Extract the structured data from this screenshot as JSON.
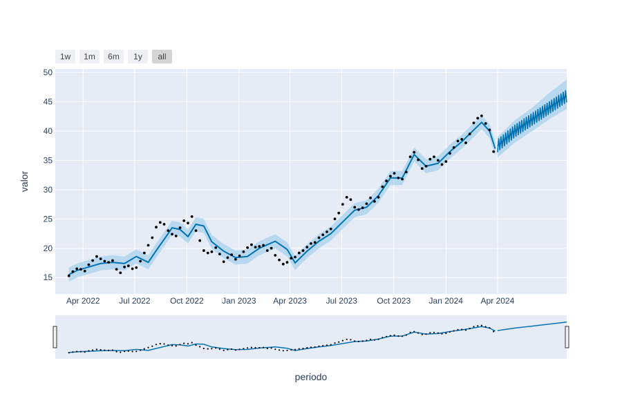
{
  "range_buttons": [
    {
      "label": "1w",
      "active": false
    },
    {
      "label": "1m",
      "active": false
    },
    {
      "label": "6m",
      "active": false
    },
    {
      "label": "1y",
      "active": false
    },
    {
      "label": "all",
      "active": true
    }
  ],
  "colors": {
    "plot_bg": "#e5ecf6",
    "forecast_line": "#0072b2",
    "uncertainty_band": "#a8d1ec",
    "observed_points": "#000000",
    "grid": "#ffffff"
  },
  "chart_data": {
    "type": "line",
    "title": "",
    "xlabel": "periodo",
    "ylabel": "valor",
    "x_type": "date",
    "xlim": [
      "2022-02-11",
      "2024-08-01"
    ],
    "ylim": [
      12.2,
      50.6
    ],
    "x_ticks": [
      {
        "date": "2022-04-01",
        "label": "Apr 2022"
      },
      {
        "date": "2022-07-01",
        "label": "Jul 2022"
      },
      {
        "date": "2022-10-01",
        "label": "Oct 2022"
      },
      {
        "date": "2023-01-01",
        "label": "Jan 2023"
      },
      {
        "date": "2023-04-01",
        "label": "Apr 2023"
      },
      {
        "date": "2023-07-01",
        "label": "Jul 2023"
      },
      {
        "date": "2023-10-01",
        "label": "Oct 2023"
      },
      {
        "date": "2024-01-01",
        "label": "Jan 2024"
      },
      {
        "date": "2024-04-01",
        "label": "Apr 2024"
      }
    ],
    "y_ticks": [
      15,
      20,
      25,
      30,
      35,
      40,
      45,
      50
    ],
    "grid": true,
    "rangeslider": true,
    "series": [
      {
        "kind": "forecast",
        "x": [
          "2022-03-07",
          "2022-03-21",
          "2022-04-11",
          "2022-05-02",
          "2022-05-23",
          "2022-06-13",
          "2022-07-04",
          "2022-07-25",
          "2022-08-08",
          "2022-08-29",
          "2022-09-05",
          "2022-09-19",
          "2022-10-03",
          "2022-10-17",
          "2022-10-31",
          "2022-11-14",
          "2022-12-05",
          "2022-12-26",
          "2023-01-16",
          "2023-02-06",
          "2023-03-06",
          "2023-03-27",
          "2023-04-10",
          "2023-05-01",
          "2023-05-22",
          "2023-06-12",
          "2023-07-03",
          "2023-07-24",
          "2023-08-14",
          "2023-09-04",
          "2023-09-25",
          "2023-10-16",
          "2023-11-06",
          "2023-11-27",
          "2023-12-18",
          "2024-01-08",
          "2024-01-29",
          "2024-02-19",
          "2024-03-04",
          "2024-03-18",
          "2024-03-28"
        ],
        "y": [
          15.5,
          16.2,
          16.8,
          17.4,
          17.6,
          17.4,
          18.6,
          17.6,
          19.6,
          22.5,
          23.5,
          23.2,
          22.0,
          24.1,
          23.8,
          21.1,
          19.5,
          18.4,
          18.6,
          20.0,
          21.2,
          19.8,
          17.5,
          19.5,
          21.2,
          22.5,
          24.5,
          26.5,
          27.0,
          29.0,
          32.0,
          32.0,
          36.0,
          34.0,
          34.5,
          36.5,
          38.2,
          40.2,
          41.5,
          40.0,
          37.0
        ],
        "lower": [
          14.3,
          15.0,
          15.6,
          16.2,
          16.4,
          16.2,
          17.4,
          16.4,
          18.4,
          21.3,
          22.3,
          22.0,
          20.8,
          22.9,
          22.6,
          19.9,
          18.3,
          17.2,
          17.4,
          18.8,
          20.0,
          18.6,
          16.3,
          18.3,
          20.0,
          21.3,
          23.3,
          25.3,
          25.8,
          27.8,
          30.8,
          30.8,
          34.8,
          32.8,
          33.3,
          35.3,
          37.0,
          39.0,
          40.3,
          38.8,
          35.8
        ],
        "upper": [
          16.7,
          17.4,
          18.0,
          18.6,
          18.8,
          18.6,
          19.8,
          18.8,
          20.8,
          23.7,
          24.7,
          24.4,
          23.2,
          25.3,
          25.0,
          22.3,
          20.7,
          19.6,
          19.8,
          21.2,
          22.4,
          21.0,
          18.7,
          20.7,
          22.4,
          23.7,
          25.7,
          27.7,
          28.2,
          30.2,
          33.2,
          33.2,
          37.2,
          35.2,
          35.7,
          37.7,
          39.4,
          41.4,
          42.7,
          41.2,
          38.2
        ]
      },
      {
        "kind": "forecast-future",
        "x": [
          "2024-04-01",
          "2024-05-01",
          "2024-06-01",
          "2024-07-01",
          "2024-08-01"
        ],
        "y": [
          37.5,
          40.0,
          42.0,
          44.0,
          46.0
        ],
        "lower": [
          35.5,
          38.0,
          40.0,
          42.0,
          43.8
        ],
        "upper": [
          39.0,
          41.8,
          44.0,
          46.5,
          48.8
        ]
      },
      {
        "kind": "observed",
        "x": [
          "2022-03-07",
          "2022-03-14",
          "2022-03-21",
          "2022-03-28",
          "2022-04-04",
          "2022-04-11",
          "2022-04-18",
          "2022-04-25",
          "2022-05-02",
          "2022-05-09",
          "2022-05-16",
          "2022-05-23",
          "2022-05-30",
          "2022-06-06",
          "2022-06-13",
          "2022-06-20",
          "2022-06-27",
          "2022-07-04",
          "2022-07-11",
          "2022-07-18",
          "2022-07-25",
          "2022-08-01",
          "2022-08-08",
          "2022-08-15",
          "2022-08-22",
          "2022-08-29",
          "2022-09-05",
          "2022-09-12",
          "2022-09-19",
          "2022-09-26",
          "2022-10-03",
          "2022-10-10",
          "2022-10-17",
          "2022-10-24",
          "2022-10-31",
          "2022-11-07",
          "2022-11-14",
          "2022-11-21",
          "2022-11-28",
          "2022-12-05",
          "2022-12-12",
          "2022-12-19",
          "2022-12-26",
          "2023-01-02",
          "2023-01-09",
          "2023-01-16",
          "2023-01-23",
          "2023-01-30",
          "2023-02-06",
          "2023-02-13",
          "2023-02-20",
          "2023-02-27",
          "2023-03-06",
          "2023-03-13",
          "2023-03-20",
          "2023-03-27",
          "2023-04-03",
          "2023-04-10",
          "2023-04-17",
          "2023-04-24",
          "2023-05-01",
          "2023-05-08",
          "2023-05-15",
          "2023-05-22",
          "2023-05-29",
          "2023-06-05",
          "2023-06-12",
          "2023-06-19",
          "2023-06-26",
          "2023-07-03",
          "2023-07-10",
          "2023-07-17",
          "2023-07-24",
          "2023-07-31",
          "2023-08-07",
          "2023-08-14",
          "2023-08-21",
          "2023-08-28",
          "2023-09-04",
          "2023-09-11",
          "2023-09-18",
          "2023-09-25",
          "2023-10-02",
          "2023-10-09",
          "2023-10-16",
          "2023-10-23",
          "2023-10-30",
          "2023-11-06",
          "2023-11-13",
          "2023-11-20",
          "2023-11-27",
          "2023-12-04",
          "2023-12-11",
          "2023-12-18",
          "2023-12-25",
          "2024-01-01",
          "2024-01-08",
          "2024-01-15",
          "2024-01-22",
          "2024-01-29",
          "2024-02-05",
          "2024-02-12",
          "2024-02-19",
          "2024-02-26",
          "2024-03-04",
          "2024-03-11",
          "2024-03-18",
          "2024-03-25"
        ],
        "y": [
          15.3,
          16.0,
          16.5,
          16.4,
          16.1,
          17.2,
          17.9,
          18.6,
          18.2,
          17.8,
          17.6,
          17.9,
          16.4,
          15.8,
          16.8,
          17.0,
          16.5,
          16.7,
          17.8,
          19.2,
          20.5,
          21.8,
          23.6,
          24.4,
          24.1,
          23.0,
          22.4,
          22.1,
          23.5,
          24.7,
          24.3,
          25.4,
          23.0,
          21.3,
          19.6,
          19.2,
          19.4,
          20.1,
          19.0,
          17.7,
          18.4,
          18.9,
          18.1,
          18.7,
          19.4,
          20.1,
          20.6,
          20.2,
          20.3,
          20.5,
          19.6,
          20.0,
          18.8,
          18.0,
          17.3,
          17.6,
          18.3,
          18.5,
          19.2,
          19.6,
          20.2,
          20.8,
          21.0,
          21.8,
          22.3,
          22.8,
          23.3,
          25.0,
          26.0,
          27.5,
          28.7,
          28.3,
          27.0,
          26.6,
          26.9,
          27.6,
          28.6,
          28.0,
          28.7,
          30.5,
          31.5,
          32.3,
          32.8,
          32.0,
          31.8,
          33.0,
          35.6,
          36.4,
          35.1,
          33.6,
          34.0,
          35.2,
          35.6,
          35.0,
          34.3,
          34.8,
          36.2,
          37.2,
          38.3,
          38.6,
          38.0,
          39.5,
          41.4,
          42.2,
          42.6,
          41.3,
          40.2,
          36.5
        ]
      }
    ]
  }
}
